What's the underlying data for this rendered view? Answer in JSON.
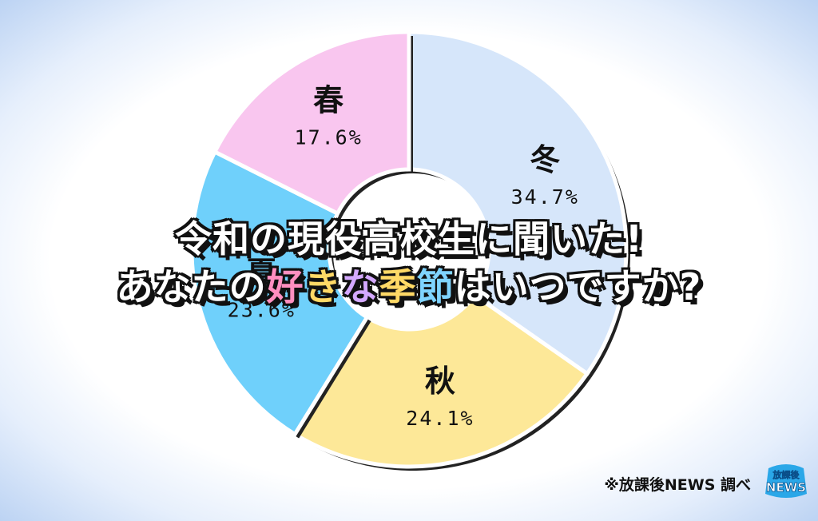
{
  "chart_data": {
    "type": "pie",
    "donut": true,
    "title_line1": "令和の現役高校生に聞いた!",
    "title_line2_parts": [
      "あなたの",
      "好",
      "き",
      "な",
      "季",
      "節",
      "はいつですか?"
    ],
    "categories": [
      "冬",
      "秋",
      "夏",
      "春"
    ],
    "values": [
      34.7,
      24.1,
      23.6,
      17.6
    ],
    "value_labels": [
      "34.7%",
      "24.1%",
      "23.6%",
      "17.6%"
    ],
    "colors": [
      "#d6e6fa",
      "#fde898",
      "#6fd0fb",
      "#f9c6ef"
    ],
    "start_angle_deg": 0,
    "direction": "clockwise"
  },
  "footer": {
    "source": "※放課後NEWS 調べ",
    "logo_text_top": "放課後",
    "logo_text_bottom": "NEWS"
  }
}
